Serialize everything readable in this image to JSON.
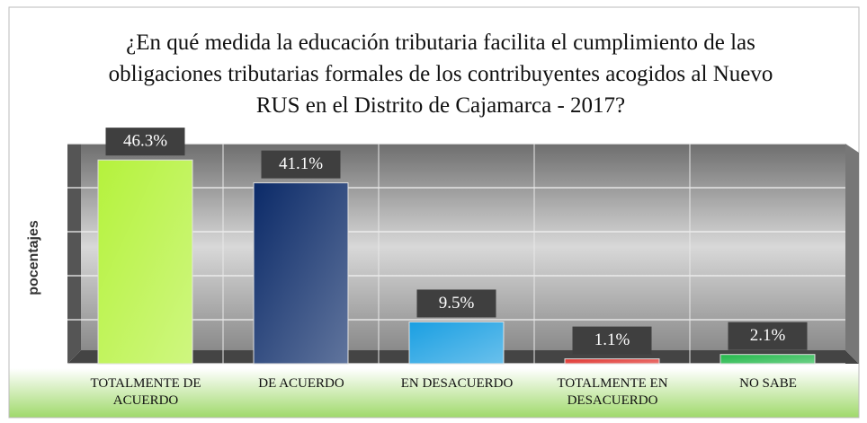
{
  "chart_data": {
    "type": "bar",
    "title": "¿En qué medida la educación tributaria facilita el cumplimiento de las obligaciones tributarias formales de los contribuyentes acogidos al Nuevo RUS en el Distrito de Cajamarca - 2017?",
    "y_label": "pocentajes",
    "categories": [
      "TOTALMENTE DE ACUERDO",
      "DE ACUERDO",
      "EN DESACUERDO",
      "TOTALMENTE EN DESACUERDO",
      "NO SABE"
    ],
    "values": [
      46.3,
      41.1,
      9.5,
      1.1,
      2.1
    ],
    "value_labels": [
      "46.3%",
      "41.1%",
      "9.5%",
      "1.1%",
      "2.1%"
    ],
    "colors": [
      "#b5f23c",
      "#0b2a68",
      "#1a9fe2",
      "#e0322e",
      "#22b84a"
    ],
    "ylim": [
      0,
      50
    ],
    "yticks": [
      0,
      10,
      20,
      30,
      40,
      50
    ],
    "grid": true
  }
}
